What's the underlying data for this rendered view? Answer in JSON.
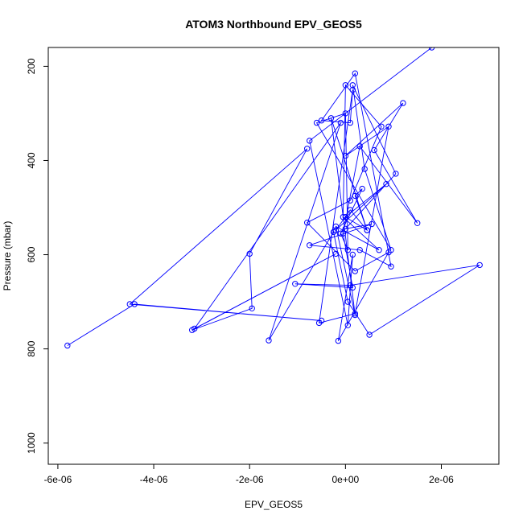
{
  "chart_data": {
    "type": "line",
    "title": "ATOM3 Northbound EPV_GEOS5",
    "xlabel": "EPV_GEOS5",
    "ylabel": "Pressure (mbar)",
    "xlim": [
      -6.2e-06,
      3.2e-06
    ],
    "ylim": [
      1045,
      160
    ],
    "y_reversed": true,
    "grid": false,
    "legend": "none",
    "color": "#0000ff",
    "x_ticks": [
      {
        "value": -6e-06,
        "label": "-6e-06"
      },
      {
        "value": -4e-06,
        "label": "-4e-06"
      },
      {
        "value": -2e-06,
        "label": "-2e-06"
      },
      {
        "value": 0,
        "label": "0e+00"
      },
      {
        "value": 2e-06,
        "label": "2e-06"
      }
    ],
    "y_ticks": [
      {
        "value": 200,
        "label": "200"
      },
      {
        "value": 400,
        "label": "400"
      },
      {
        "value": 600,
        "label": "600"
      },
      {
        "value": 800,
        "label": "800"
      },
      {
        "value": 1000,
        "label": "1000"
      }
    ],
    "series": [
      {
        "x": [
          -5.8e-06,
          -4.4e-06,
          -5e-07,
          -4.5e-06,
          -8e-07,
          -2e-06,
          -1.95e-06,
          -3.2e-06,
          -2e-07,
          -3.15e-06,
          -1e-07,
          -1.6e-06,
          -2.5e-07,
          5e-08,
          5e-07,
          2.8e-06,
          1e-07,
          -1.05e-06,
          1.5e-07,
          -5e-08,
          3e-07,
          1.5e-06,
          6e-07,
          1.2e-06,
          0.0,
          9e-07,
          2e-07,
          -5.5e-07,
          1.5e-07,
          1e-07,
          -5e-07,
          2e-07,
          9.5e-07,
          3e-07,
          -7.5e-07,
          5.5e-07,
          0.0,
          1.05e-06,
          1.5e-07,
          4e-07,
          9.5e-07,
          -6e-07,
          0.0,
          5e-08,
          -1e-07,
          3.5e-07,
          2e-07,
          4.5e-07,
          1e-07,
          -2e-07,
          8.5e-07,
          0.0,
          4.5e-07,
          -3e-07,
          2e-07,
          -2e-07,
          7e-07,
          -5e-08,
          0.0,
          7.5e-07,
          1e-07,
          -8e-07,
          2e-07,
          9e-07,
          -1.5e-07,
          1.5e-07,
          5e-08,
          -7.5e-07,
          1.8e-06
        ],
        "y": [
          793,
          705,
          740,
          705,
          375,
          598,
          714,
          760,
          598,
          757,
          320,
          782,
          552,
          700,
          770,
          622,
          665,
          662,
          670,
          555,
          370,
          533,
          378,
          278,
          390,
          328,
          725,
          745,
          250,
          320,
          315,
          215,
          625,
          590,
          580,
          535,
          545,
          428,
          240,
          418,
          590,
          320,
          300,
          590,
          555,
          460,
          475,
          548,
          505,
          548,
          450,
          520,
          548,
          310,
          728,
          540,
          590,
          520,
          240,
          328,
          485,
          532,
          635,
          595,
          783,
          600,
          750,
          358,
          160
        ]
      }
    ]
  }
}
